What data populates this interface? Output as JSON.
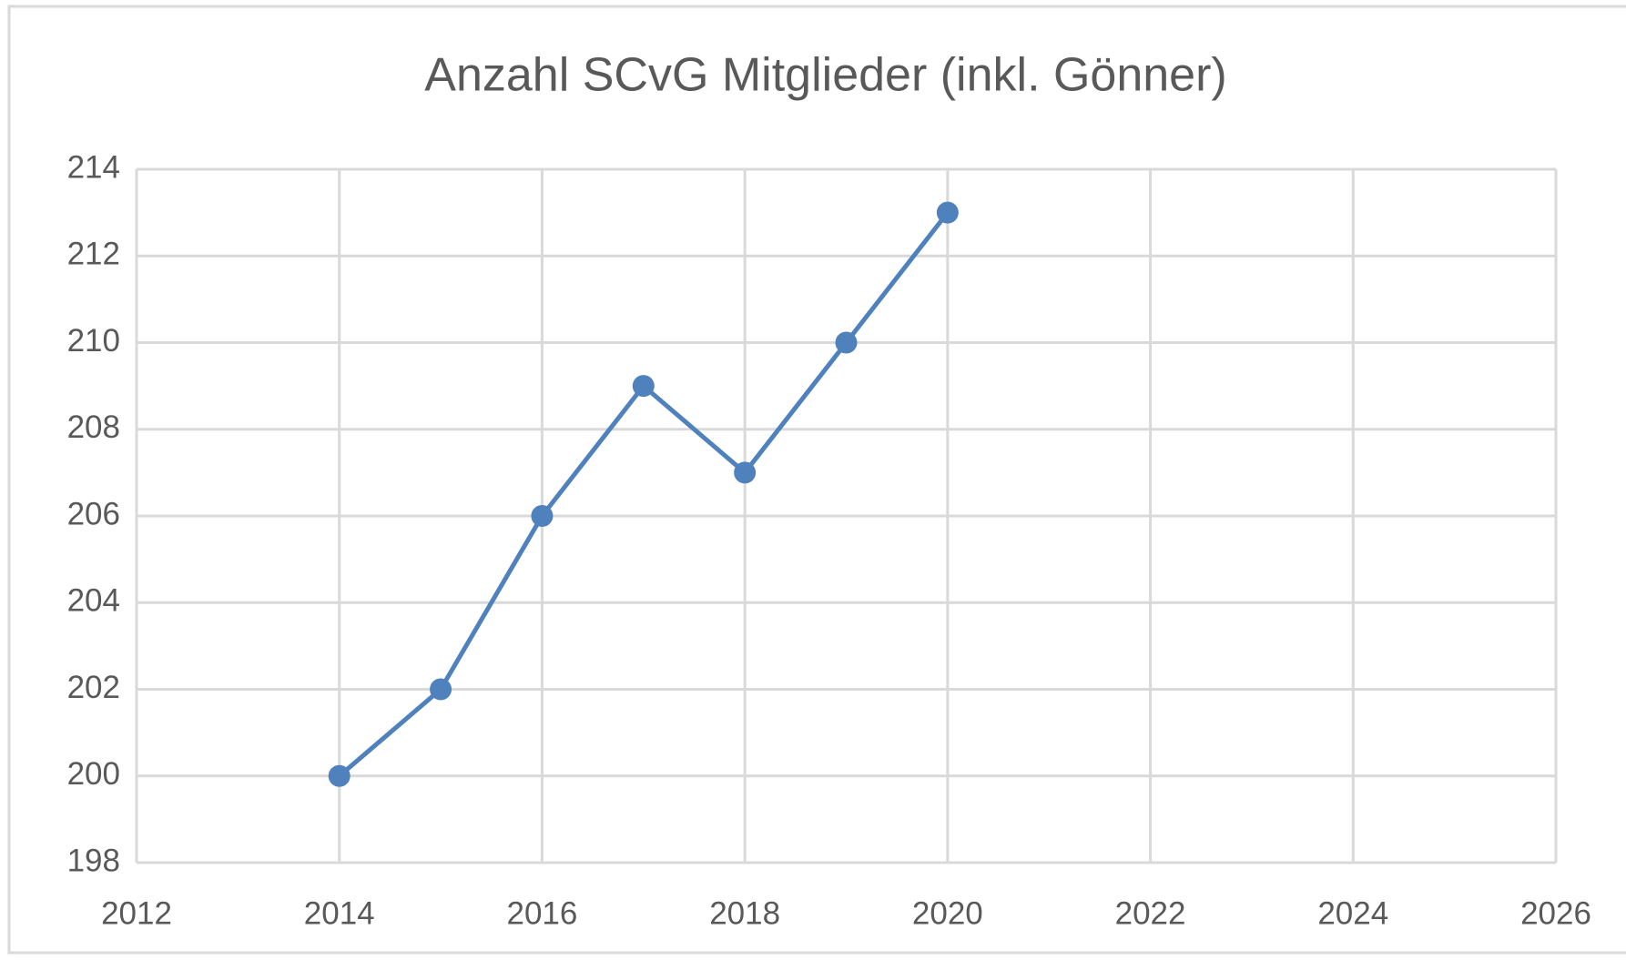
{
  "chart_data": {
    "type": "line",
    "title": "Anzahl SCvG  Mitglieder (inkl. Gönner)",
    "x": [
      2014,
      2015,
      2016,
      2017,
      2018,
      2019,
      2020
    ],
    "series": [
      {
        "name": "Mitglieder",
        "color": "#4f81bd",
        "values": [
          200,
          202,
          206,
          209,
          207,
          210,
          213
        ]
      }
    ],
    "xlim": [
      2012,
      2026
    ],
    "xticks": [
      2012,
      2014,
      2016,
      2018,
      2020,
      2022,
      2024,
      2026
    ],
    "ylim": [
      198,
      214
    ],
    "yticks": [
      198,
      200,
      202,
      204,
      206,
      208,
      210,
      212,
      214
    ],
    "grid": true
  }
}
